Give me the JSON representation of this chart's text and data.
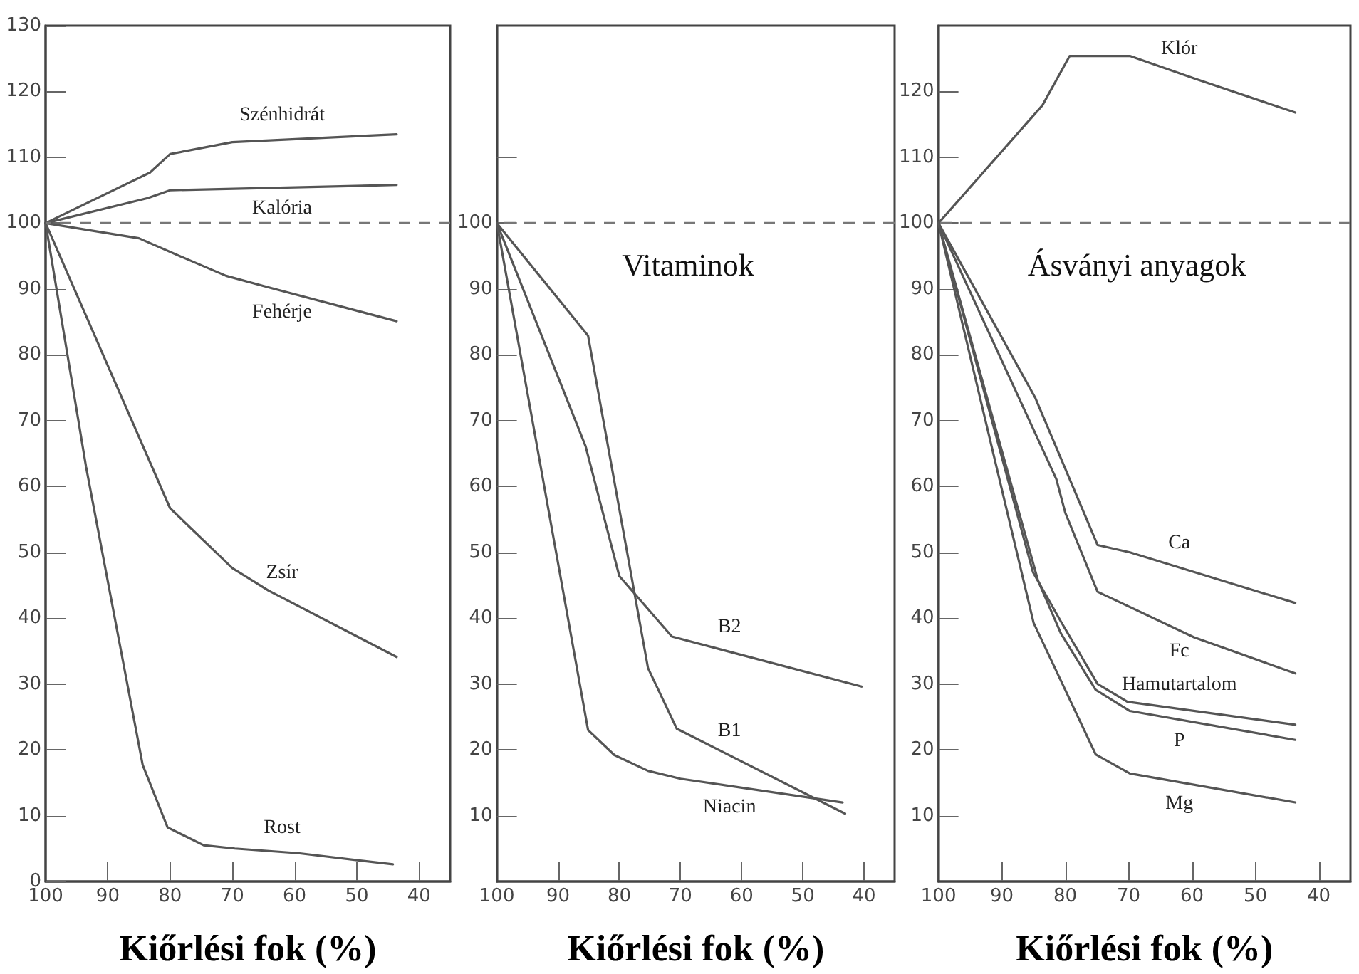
{
  "chart_data": [
    {
      "type": "line",
      "xlabel": "Kiőrlési fok (%)",
      "xlim": [
        100,
        35
      ],
      "xticks": [
        100,
        90,
        80,
        70,
        60,
        50,
        40
      ],
      "ylim": [
        0,
        130
      ],
      "yticks": [
        0,
        10,
        20,
        30,
        40,
        50,
        60,
        70,
        80,
        90,
        100,
        110,
        120,
        130
      ],
      "ref_lines": [
        {
          "axis": "y",
          "value": 100,
          "line_style": "dashed",
          "color": "#777777"
        }
      ],
      "series": [
        {
          "name": "Szénhidrát",
          "color": "#555555",
          "x": [
            100,
            83.2,
            80,
            70,
            43.6
          ],
          "values": [
            100,
            107.7,
            110.5,
            112.3,
            113.5
          ]
        },
        {
          "name": "Kalória",
          "color": "#555555",
          "x": [
            100,
            83.6,
            80,
            43.6
          ],
          "values": [
            100,
            103.8,
            105,
            105.8
          ]
        },
        {
          "name": "Fehérje",
          "color": "#555555",
          "x": [
            100,
            85,
            77.7,
            71,
            64,
            43.6
          ],
          "values": [
            100,
            97.7,
            94.7,
            92,
            90.2,
            85.1
          ]
        },
        {
          "name": "Zsír",
          "color": "#555555",
          "x": [
            100,
            80,
            70,
            64.2,
            43.6
          ],
          "values": [
            100,
            56.7,
            47.6,
            44.2,
            34.1
          ]
        },
        {
          "name": "Rost",
          "color": "#555555",
          "x": [
            100,
            93.5,
            84.4,
            80.4,
            74.6,
            69.6,
            59.4,
            44.2
          ],
          "values": [
            100,
            63,
            17.7,
            8.2,
            5.5,
            5,
            4.3,
            2.6
          ]
        }
      ]
    },
    {
      "type": "line",
      "title": "Vitaminok",
      "xlabel": "Kiőrlési fok (%)",
      "xlim": [
        100,
        35
      ],
      "xticks": [
        100,
        90,
        80,
        70,
        60,
        50,
        40
      ],
      "ylim": [
        0,
        130
      ],
      "yticks": [
        10,
        20,
        30,
        40,
        50,
        60,
        70,
        80,
        90,
        100,
        {
          "value": 110,
          "label": null
        }
      ],
      "ref_lines": [
        {
          "axis": "y",
          "value": 100,
          "line_style": "dashed",
          "color": "#777777"
        }
      ],
      "series": [
        {
          "name": "B2",
          "color": "#555555",
          "x": [
            100,
            85.5,
            80,
            71.4,
            40.4
          ],
          "values": [
            100,
            66.1,
            46.4,
            37.2,
            29.6
          ]
        },
        {
          "name": "B1",
          "color": "#555555",
          "x": [
            100,
            85.1,
            75.3,
            70.6,
            43.1
          ],
          "values": [
            100,
            82.9,
            32.4,
            23.2,
            10.3
          ]
        },
        {
          "name": "Niacin",
          "color": "#555555",
          "x": [
            100,
            85.1,
            80.8,
            75.3,
            70,
            43.5
          ],
          "values": [
            100,
            23,
            19.2,
            16.8,
            15.6,
            12
          ]
        }
      ]
    },
    {
      "type": "line",
      "title": "Ásványi anyagok",
      "xlabel": "Kiőrlési fok (%)",
      "xlim": [
        100,
        35
      ],
      "xticks": [
        100,
        90,
        80,
        70,
        60,
        50,
        40
      ],
      "ylim": [
        0,
        130
      ],
      "yticks": [
        10,
        20,
        30,
        40,
        50,
        60,
        70,
        80,
        90,
        100,
        110,
        120
      ],
      "ref_lines": [
        {
          "axis": "y",
          "value": 100,
          "line_style": "dashed",
          "color": "#777777"
        }
      ],
      "series": [
        {
          "name": "Klór",
          "color": "#555555",
          "x": [
            100,
            83.6,
            79.3,
            69.8,
            59.7,
            43.7
          ],
          "values": [
            100,
            117.9,
            125.4,
            125.4,
            122,
            116.8
          ]
        },
        {
          "name": "Ca",
          "color": "#555555",
          "x": [
            100,
            84.7,
            74.9,
            69.8,
            43.7
          ],
          "values": [
            100,
            73.4,
            51.1,
            50,
            42.3
          ]
        },
        {
          "name": "Fc",
          "color": "#555555",
          "x": [
            100,
            81.4,
            80,
            74.9,
            59.7,
            43.7
          ],
          "values": [
            100,
            61.1,
            56,
            44,
            37.1,
            31.6
          ]
        },
        {
          "name": "Hamutartalom",
          "color": "#555555",
          "x": [
            100,
            85.1,
            80.7,
            74.9,
            70.2,
            43.7
          ],
          "values": [
            100,
            47,
            39.5,
            30,
            27.3,
            23.8
          ]
        },
        {
          "name": "P",
          "color": "#555555",
          "x": [
            100,
            84.3,
            80.7,
            75.2,
            69.8,
            43.7
          ],
          "values": [
            100,
            45.7,
            37.7,
            29.1,
            25.9,
            21.5
          ]
        },
        {
          "name": "Mg",
          "color": "#555555",
          "x": [
            100,
            85,
            75.2,
            69.8,
            43.7
          ],
          "values": [
            100,
            39.3,
            19.3,
            16.4,
            12
          ]
        }
      ]
    }
  ]
}
